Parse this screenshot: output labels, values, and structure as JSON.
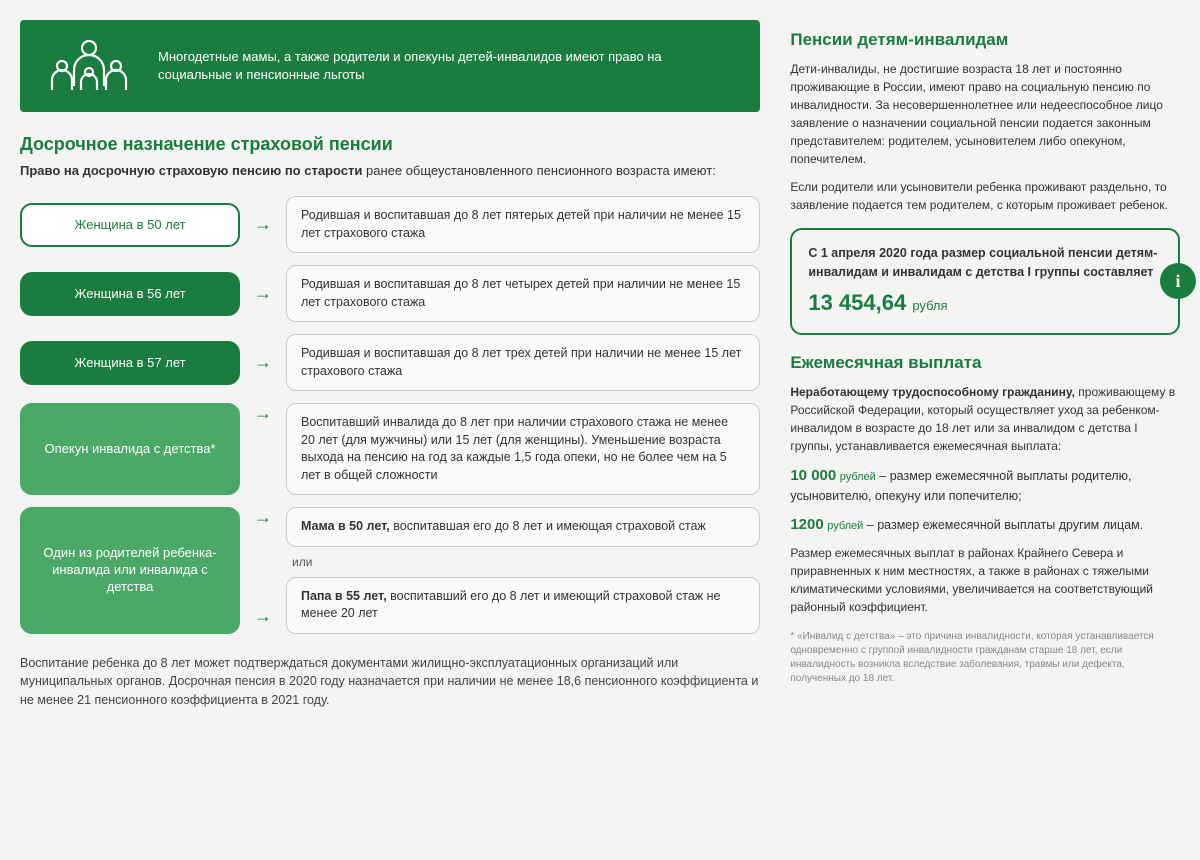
{
  "colors": {
    "primary": "#1a7d3f",
    "primary_light": "#4ba968",
    "bg": "#f4f4f2",
    "border": "#cccccc",
    "text": "#333333"
  },
  "banner": {
    "text": "Многодетные мамы, а также родители и опекуны детей-инвалидов имеют право на социальные и пенсионные льготы"
  },
  "left": {
    "title": "Досрочное назначение страховой пенсии",
    "subtitle_bold": "Право на досрочную страховую пенсию по старости",
    "subtitle_rest": " ранее общеустановленного пенсионного возраста имеют:",
    "rows": [
      {
        "pill_style": "outline",
        "label": "Женщина в 50 лет",
        "desc": "Родившая и воспитавшая до 8 лет пятерых детей при наличии не менее 15 лет страхового стажа"
      },
      {
        "pill_style": "solid-dark",
        "label": "Женщина в 56 лет",
        "desc": "Родившая и воспитавшая до 8 лет четырех детей при наличии не менее 15 лет страхового стажа"
      },
      {
        "pill_style": "solid-dark",
        "label": "Женщина в 57 лет",
        "desc": "Родившая и воспитавшая до 8 лет трех детей при наличии не менее 15 лет страхового стажа"
      },
      {
        "pill_style": "solid-light",
        "pill_class": "tall",
        "label": "Опекун инвалида с детства*",
        "desc": "Воспитавший инвалида до 8 лет при наличии страхового стажа не менее 20 лет (для мужчины) или 15 лет (для женщины). Уменьшение возраста выхода на пенсию на год за каждые 1,5 года опеки, но не более чем на 5 лет в общей сложности"
      }
    ],
    "split_row": {
      "pill_style": "solid-light",
      "pill_class": "xtall",
      "label": "Один из родителей ребенка-инвалида или инвалида с детства",
      "or": "или",
      "desc_a_bold": "Мама в 50 лет,",
      "desc_a_rest": " воспитавшая его до 8 лет и имеющая страховой стаж",
      "desc_b_bold": "Папа в 55 лет,",
      "desc_b_rest": " воспитавший его до 8 лет и имеющий страховой стаж не менее 20 лет"
    },
    "footnote": "Воспитание ребенка до 8 лет может подтверждаться документами жилищно-эксплуатационных организаций или муниципальных органов. Досрочная пенсия в 2020 году назначается при наличии не менее 18,6 пенсионного коэффициента и не менее 21 пенсионного коэффициента в 2021 году."
  },
  "right": {
    "title1": "Пенсии детям-инвалидам",
    "para1": "Дети-инвалиды, не достигшие возраста 18 лет и постоянно проживающие в России, имеют право на социальную пенсию по инвалидности. За несовершеннолетнее или недееспособное лицо заявление о назначении социальной пенсии подается законным представителем: родителем, усыновителем либо опекуном, попечителем.",
    "para2": "Если родители или усыновители ребенка проживают раздельно, то заявление подается тем родителем, с которым проживает ребенок.",
    "info_lead": "С 1 апреля 2020 года размер социальной пенсии детям-инвалидам и инвалидам с детства I группы составляет",
    "info_amount": "13 454,64",
    "info_unit": "рубля",
    "info_badge": "i",
    "title2": "Ежемесячная выплата",
    "para3_bold": "Неработающему трудоспособному гражданину,",
    "para3_rest": " проживающему в Российской Федерации, который осуществляет уход за ребенком-инвалидом в возрасте до 18 лет или за инвалидом с детства I группы, устанавливается ежемесячная выплата:",
    "pay1_num": "10 000",
    "pay1_unit": "рублей",
    "pay1_rest": " – размер ежемесячной выплаты родителю, усыновителю, опекуну или попечителю;",
    "pay2_num": "1200",
    "pay2_unit": "рублей",
    "pay2_rest": " – размер ежемесячной выплаты другим лицам.",
    "para4": "Размер ежемесячных выплат в районах Крайнего Севера и приравненных к ним местностях, а также в районах с тяжелыми климатическими условиями, увеличивается на соответствующий районный коэффициент.",
    "small_note": "* «Инвалид с детства» – это причина инвалидности, которая устанавливается одновременно с группой инвалидности гражданам старше 18 лет, если инвалидность возникла вследствие заболевания, травмы или дефекта, полученных до 18 лет."
  }
}
